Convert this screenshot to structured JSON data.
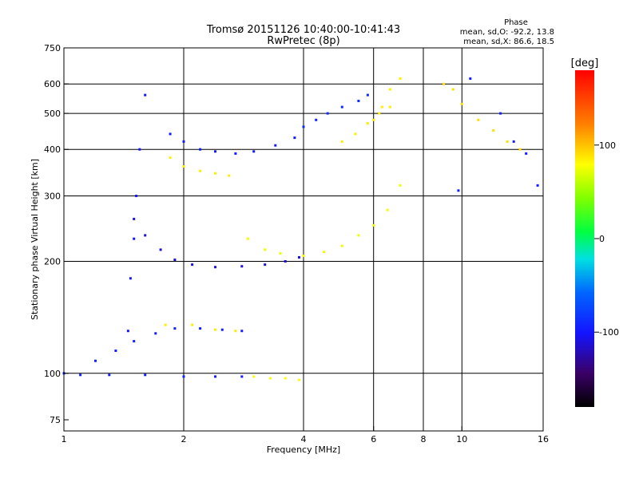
{
  "chart_data": {
    "type": "scatter",
    "title": "Tromsø 20151126 10:40:00-10:41:43",
    "subtitle": "RwPretec (8p)",
    "xlabel": "Frequency [MHz]",
    "ylabel": "Stationary phase Virtual Height [km]",
    "x_scale": "log",
    "y_scale": "log",
    "xlim": [
      1,
      16
    ],
    "ylim": [
      70,
      750
    ],
    "x_ticks": [
      1,
      2,
      4,
      6,
      8,
      10,
      16
    ],
    "y_ticks": [
      75,
      100,
      200,
      300,
      400,
      500,
      600,
      750
    ],
    "x_grid": [
      2,
      4,
      6,
      8,
      10
    ],
    "y_grid": [
      100,
      200,
      300,
      400,
      500,
      600
    ],
    "grid": true,
    "phase_stats": {
      "title": "Phase",
      "line_o": "mean, sd,O: -92.2, 13.8",
      "line_x": "mean, sd,X: 86.6, 18.5"
    },
    "colorbar": {
      "label": "[deg]",
      "min": -180,
      "max": 180,
      "ticks": [
        -100,
        0,
        100
      ],
      "tick_labels": [
        "-100",
        "0",
        "100"
      ]
    },
    "traces": [
      {
        "x": [
          1.0,
          1.1,
          1.3,
          1.6,
          2.0,
          2.4,
          2.8
        ],
        "y": [
          100,
          99,
          99,
          99,
          98,
          98,
          98
        ],
        "phase": -95
      },
      {
        "x": [
          3.0,
          3.3,
          3.6,
          3.9
        ],
        "y": [
          98,
          97,
          97,
          96
        ],
        "phase": 80
      },
      {
        "x": [
          1.45,
          1.47,
          1.5,
          1.52,
          1.55,
          1.6
        ],
        "y": [
          130,
          180,
          230,
          300,
          400,
          560
        ],
        "phase": -100
      },
      {
        "x": [
          1.5,
          1.6,
          1.75,
          1.9,
          2.1,
          2.4,
          2.8,
          3.2,
          3.6,
          3.9
        ],
        "y": [
          260,
          235,
          215,
          202,
          196,
          193,
          194,
          196,
          200,
          205
        ],
        "phase": -110
      },
      {
        "x": [
          2.9,
          3.2,
          3.5,
          4.0,
          4.5,
          5.0,
          5.5,
          6.0,
          6.5,
          7.0
        ],
        "y": [
          230,
          215,
          210,
          207,
          212,
          220,
          235,
          250,
          275,
          320
        ],
        "phase": 75
      },
      {
        "x": [
          1.85,
          2.0,
          2.2,
          2.4,
          2.7,
          3.0,
          3.4,
          3.8
        ],
        "y": [
          440,
          420,
          400,
          395,
          390,
          395,
          410,
          430
        ],
        "phase": -98
      },
      {
        "x": [
          4.0,
          4.3,
          4.6,
          5.0,
          5.5,
          5.8
        ],
        "y": [
          460,
          480,
          500,
          520,
          540,
          560
        ],
        "phase": -90
      },
      {
        "x": [
          5.0,
          5.4,
          5.8,
          6.2,
          6.6
        ],
        "y": [
          420,
          440,
          470,
          500,
          520
        ],
        "phase": 85
      },
      {
        "x": [
          1.2,
          1.35,
          1.5,
          1.7,
          1.9,
          2.2,
          2.5,
          2.8
        ],
        "y": [
          108,
          115,
          122,
          128,
          132,
          132,
          131,
          130
        ],
        "phase": -95
      },
      {
        "x": [
          1.8,
          2.1,
          2.4,
          2.7
        ],
        "y": [
          135,
          135,
          131,
          130
        ],
        "phase": 85
      },
      {
        "x": [
          1.85,
          2.0,
          2.2,
          2.4,
          2.6
        ],
        "y": [
          380,
          360,
          350,
          345,
          340
        ],
        "phase": 85
      },
      {
        "x": [
          6.0,
          6.3,
          6.6,
          7.0
        ],
        "y": [
          480,
          520,
          580,
          620
        ],
        "phase": 85
      },
      {
        "x": [
          9.0,
          9.5,
          10.0,
          11.0,
          12.0,
          13.0,
          14.0
        ],
        "y": [
          600,
          580,
          530,
          480,
          450,
          420,
          400
        ],
        "phase": 90
      },
      {
        "x": [
          9.8,
          10.5,
          12.5,
          13.5,
          14.5,
          15.5
        ],
        "y": [
          310,
          620,
          500,
          420,
          390,
          320
        ],
        "phase": -95
      }
    ]
  }
}
